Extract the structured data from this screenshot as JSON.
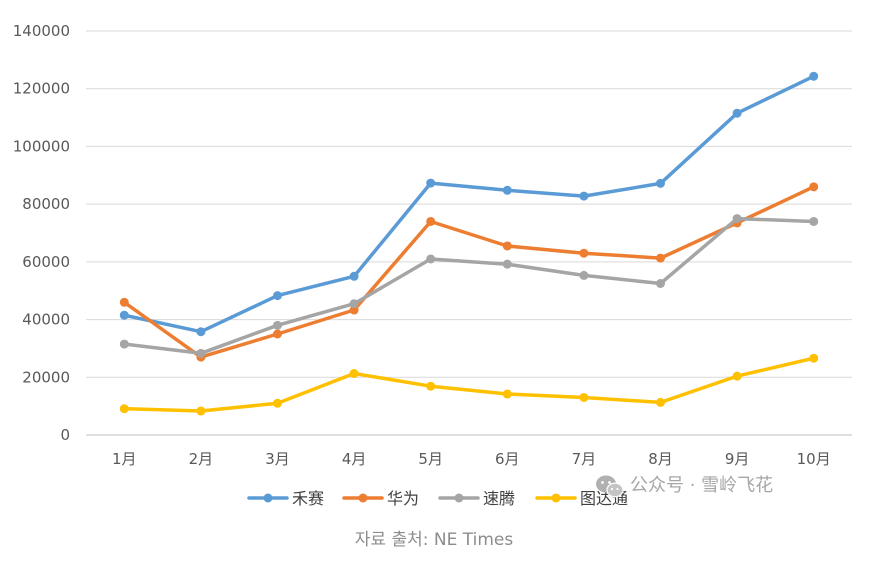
{
  "chart_data": {
    "type": "line",
    "title": "",
    "xlabel": "",
    "ylabel": "",
    "categories": [
      "1月",
      "2月",
      "3月",
      "4月",
      "5月",
      "6月",
      "7月",
      "8月",
      "9月",
      "10月"
    ],
    "ylim": [
      0,
      140000
    ],
    "yticks": [
      "0",
      "20000",
      "40000",
      "60000",
      "80000",
      "100000",
      "120000",
      "140000"
    ],
    "grid": true,
    "legend_position": "bottom",
    "series": [
      {
        "name": "禾赛",
        "color": "#5b9bd5",
        "values": [
          41500,
          35800,
          48300,
          55000,
          87300,
          84800,
          82800,
          87200,
          111500,
          124300
        ]
      },
      {
        "name": "华为",
        "color": "#ed7d31",
        "values": [
          46000,
          27000,
          35000,
          43300,
          74000,
          65500,
          63000,
          61300,
          73500,
          86000
        ]
      },
      {
        "name": "速腾",
        "color": "#a5a5a5",
        "values": [
          31500,
          28300,
          38000,
          45500,
          61000,
          59200,
          55300,
          52500,
          75000,
          74000
        ]
      },
      {
        "name": "图达通",
        "color": "#ffc000",
        "values": [
          9100,
          8300,
          11000,
          21300,
          16900,
          14200,
          13000,
          11300,
          20400,
          26600
        ]
      }
    ]
  },
  "source_text": "자료 출처: NE Times",
  "watermark": {
    "icon": "wechat-icon",
    "text": "公众号 · 雪岭飞花"
  }
}
